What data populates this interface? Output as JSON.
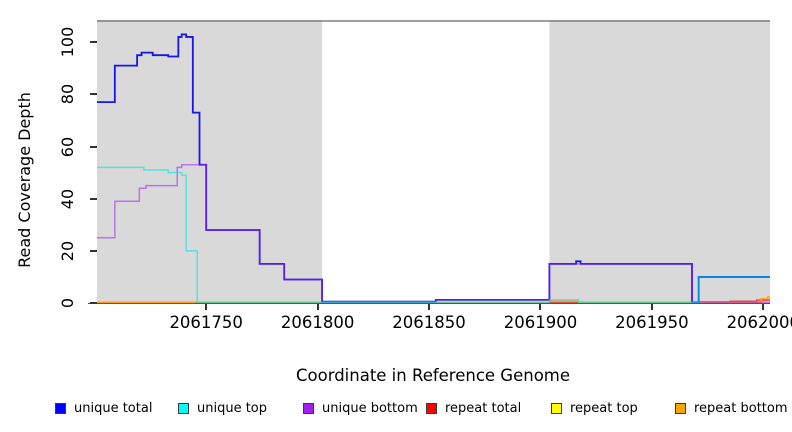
{
  "figure": {
    "y_axis": {
      "label": "Read Coverage Depth",
      "ticks": [
        0,
        20,
        40,
        60,
        80,
        100
      ],
      "min": 0,
      "max": 108.5
    },
    "x_axis": {
      "label": "Coordinate in Reference Genome",
      "ticks": [
        2061750,
        2061800,
        2061850,
        2061900,
        2061950,
        2062000
      ],
      "min": 2061701,
      "max": 2062003
    },
    "panel": {
      "shaded_color": "#D9D9D9",
      "shaded_regions": [
        [
          2061701,
          2061802
        ],
        [
          2061904,
          2062003
        ]
      ],
      "gap_region": [
        2061802,
        2061904
      ],
      "top_border_color": "#7F7F7F"
    },
    "legend": [
      {
        "label": "unique total",
        "color": "#0000FF"
      },
      {
        "label": "unique top",
        "color": "#00FFFF"
      },
      {
        "label": "unique bottom",
        "color": "#A020F0"
      },
      {
        "label": "repeat total",
        "color": "#FF0000"
      },
      {
        "label": "repeat top",
        "color": "#FFFF00"
      },
      {
        "label": "repeat bottom",
        "color": "#FFA500"
      }
    ]
  },
  "chart_data": {
    "type": "line",
    "step": true,
    "title": "",
    "xlabel": "Coordinate in Reference Genome",
    "ylabel": "Read Coverage Depth",
    "xlim": [
      2061701,
      2062003
    ],
    "ylim": [
      0,
      108.5
    ],
    "grid": false,
    "legend_position": "bottom",
    "series": [
      {
        "name": "repeat top",
        "color": "#F2E61E",
        "opacity": 1,
        "width": 1.4,
        "points": [
          [
            2061701,
            0.15
          ],
          [
            2062000,
            2
          ]
        ]
      },
      {
        "name": "repeat total",
        "color": "#E04040",
        "opacity": 0.95,
        "width": 1.4,
        "points": [
          [
            2061701,
            0.15
          ],
          [
            2061971,
            0.45
          ],
          [
            2061985,
            0.7
          ],
          [
            2061997,
            1.1
          ]
        ]
      },
      {
        "name": "repeat bottom",
        "color": "#FF9E1B",
        "opacity": 1,
        "width": 1.5,
        "points": [
          [
            2061701,
            0.3
          ],
          [
            2061904,
            0.7
          ],
          [
            2061917,
            0.3
          ],
          [
            2061999,
            1.6
          ],
          [
            2062002,
            2.3
          ]
        ]
      },
      {
        "name": "unique total",
        "color": "#1616E8",
        "opacity": 1,
        "width": 1.8,
        "points": [
          [
            2061701,
            77
          ],
          [
            2061709,
            91
          ],
          [
            2061719,
            95
          ],
          [
            2061721,
            96
          ],
          [
            2061726,
            95
          ],
          [
            2061733,
            94.5
          ],
          [
            2061737.5,
            102
          ],
          [
            2061739,
            103
          ],
          [
            2061741,
            102
          ],
          [
            2061744,
            73
          ],
          [
            2061747,
            53
          ],
          [
            2061750,
            28
          ],
          [
            2061774,
            15
          ],
          [
            2061785,
            9
          ],
          [
            2061802,
            0.5
          ],
          [
            2061853,
            1.2
          ],
          [
            2061904,
            15
          ],
          [
            2061916,
            16
          ],
          [
            2061918,
            15
          ],
          [
            2061968,
            0.3
          ],
          [
            2061971,
            10
          ]
        ]
      },
      {
        "name": "unique bottom",
        "color": "#A020F0",
        "opacity": 0.55,
        "width": 1.5,
        "points": [
          [
            2061701,
            25
          ],
          [
            2061709,
            39
          ],
          [
            2061720,
            44
          ],
          [
            2061723,
            45
          ],
          [
            2061737,
            52
          ],
          [
            2061739,
            53
          ],
          [
            2061750,
            28
          ],
          [
            2061774,
            15
          ],
          [
            2061785,
            9
          ],
          [
            2061802,
            0.5
          ],
          [
            2061853,
            1.2
          ],
          [
            2061904,
            15
          ],
          [
            2061968,
            0.3
          ]
        ]
      },
      {
        "name": "unique top",
        "color": "#00E6E6",
        "opacity": 0.6,
        "width": 1.5,
        "points": [
          [
            2061701,
            52
          ],
          [
            2061722,
            51
          ],
          [
            2061733,
            50
          ],
          [
            2061739,
            49
          ],
          [
            2061741,
            20
          ],
          [
            2061746,
            0.3
          ],
          [
            2061904,
            1.2
          ],
          [
            2061917,
            0.3
          ],
          [
            2061971,
            10
          ]
        ]
      }
    ]
  }
}
